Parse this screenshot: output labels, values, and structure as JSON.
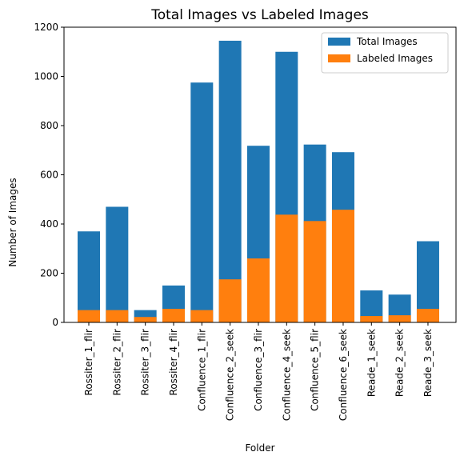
{
  "chart_data": {
    "type": "bar",
    "title": "Total Images vs Labeled Images",
    "xlabel": "Folder",
    "ylabel": "Number of Images",
    "categories": [
      "Rossiter_1_flir",
      "Rossiter_2_flir",
      "Rossiter_3_flir",
      "Rossiter_4_flir",
      "Confluence_1_flir",
      "Confluence_2_seek",
      "Confluence_3_flir",
      "Confluence_4_seek",
      "Confluence_5_flir",
      "Confluence_6_seek",
      "Reade_1_seek",
      "Reade_2_seek",
      "Reade_3_seek"
    ],
    "series": [
      {
        "name": "Total Images",
        "color": "#1f77b4",
        "values": [
          370,
          470,
          50,
          150,
          975,
          1145,
          718,
          1100,
          723,
          692,
          130,
          113,
          330
        ]
      },
      {
        "name": "Labeled Images",
        "color": "#ff7f0e",
        "values": [
          50,
          50,
          22,
          55,
          50,
          175,
          260,
          438,
          412,
          458,
          26,
          29,
          55
        ]
      }
    ],
    "ylim": [
      0,
      1200
    ],
    "yticks": [
      0,
      200,
      400,
      600,
      800,
      1000,
      1200
    ],
    "legend": "upper right"
  }
}
